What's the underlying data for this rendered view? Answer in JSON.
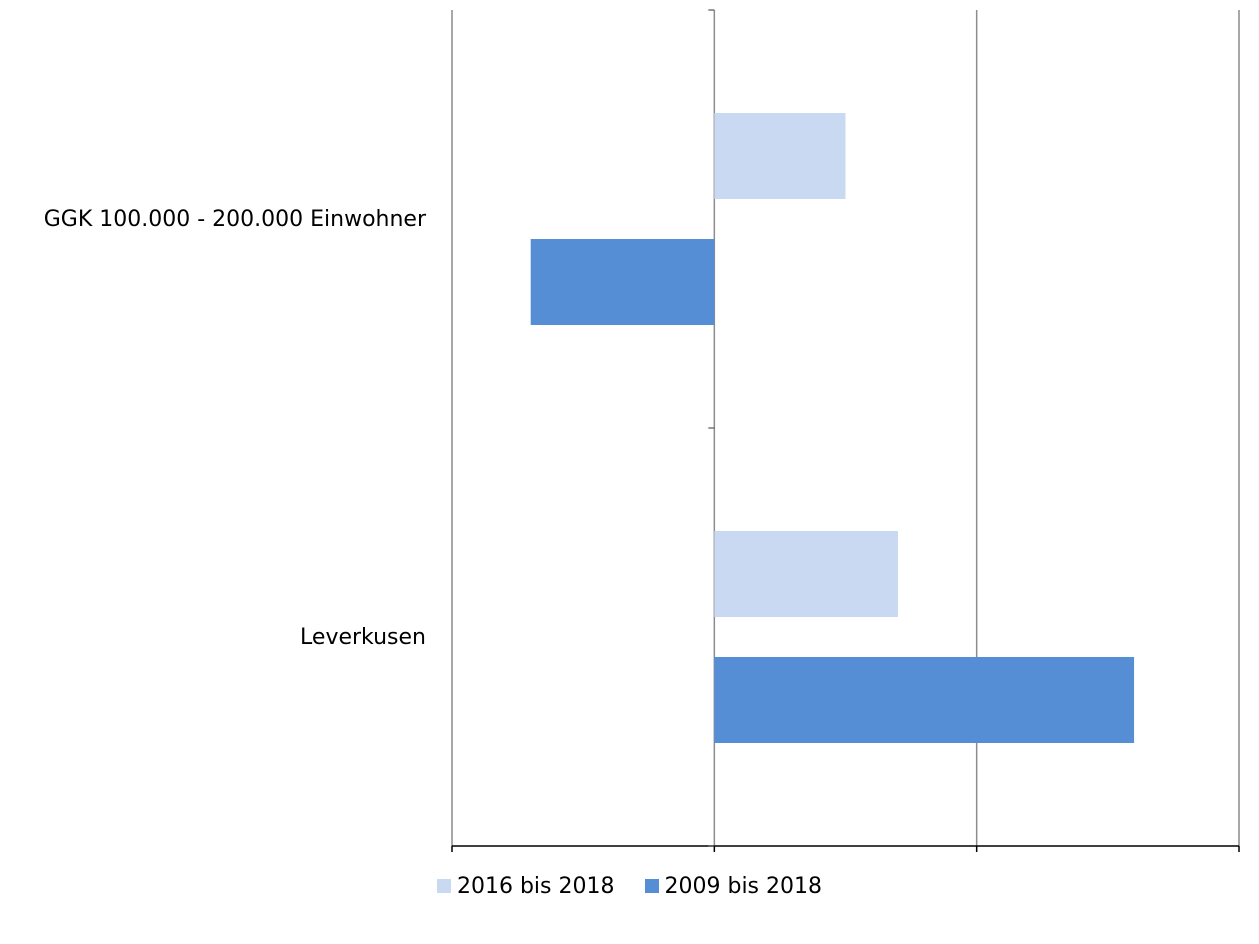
{
  "chart_data": {
    "type": "bar",
    "orientation": "horizontal",
    "categories": [
      "GGK 100.000 - 200.000 Einwohner",
      "Leverkusen"
    ],
    "series": [
      {
        "name": "2016 bis 2018",
        "color": "#c8d9f1",
        "values": [
          0.05,
          0.07
        ]
      },
      {
        "name": "2009 bis 2018",
        "color": "#558ed5",
        "values": [
          -0.07,
          0.16
        ]
      }
    ],
    "x_ticks": [
      "-0,1",
      "0",
      "0,1",
      "0,2"
    ],
    "xlim": [
      -0.1,
      0.2
    ],
    "grid": true,
    "legend_position": "bottom"
  }
}
